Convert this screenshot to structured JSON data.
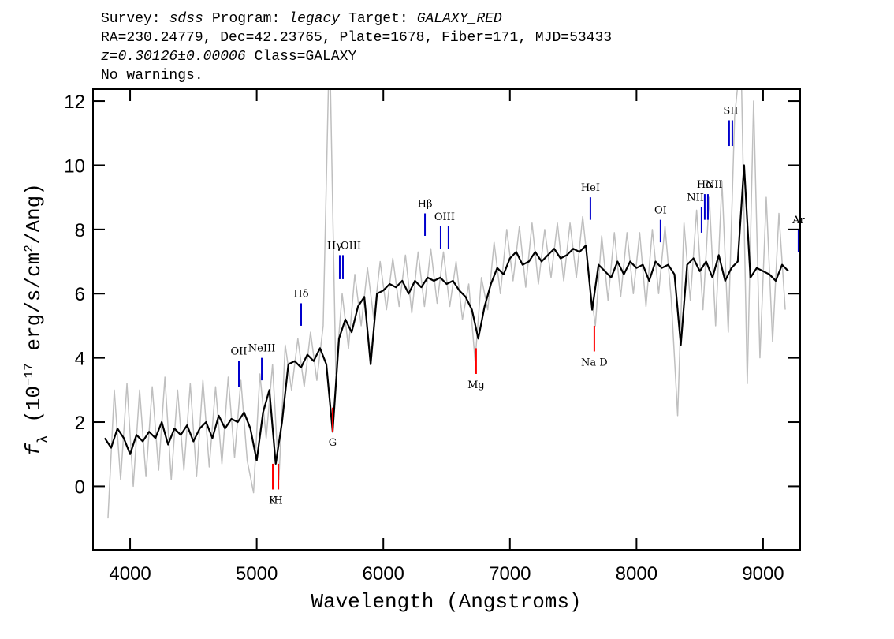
{
  "chart_data": {
    "type": "line",
    "title_lines": [
      [
        {
          "text": "Survey:"
        },
        {
          "text": "sdss",
          "italic": true
        },
        {
          "text": "Program:"
        },
        {
          "text": "legacy",
          "italic": true
        },
        {
          "text": "Target:"
        },
        {
          "text": "GALAXY_RED",
          "italic": true
        }
      ],
      [
        {
          "text": "RA=230.24779, Dec=42.23765, Plate=1678, Fiber=171, MJD=53433"
        }
      ],
      [
        {
          "text": "z=0.30126±0.00006",
          "italic": true
        },
        {
          "text": "Class=GALAXY"
        }
      ],
      [
        {
          "text": "No warnings."
        }
      ]
    ],
    "xlabel": "Wavelength (Angstroms)",
    "ylabel": [
      {
        "text": "f",
        "italic": true
      },
      {
        "text": "λ",
        "shift": "sub"
      },
      {
        "text": " (10"
      },
      {
        "text": "−17",
        "shift": "super"
      },
      {
        "text": " erg/s/cm"
      },
      {
        "text": "2",
        "shift": "super"
      },
      {
        "text": "/Ang)"
      }
    ],
    "xlim": [
      3707,
      9293
    ],
    "ylim": [
      -1.98,
      12.37
    ],
    "xticks": [
      4000,
      5000,
      6000,
      7000,
      8000,
      9000
    ],
    "yticks": [
      0,
      2,
      4,
      6,
      8,
      10,
      12
    ],
    "series": [
      {
        "color": "#bfbfbf",
        "x": [
          3825,
          3875,
          3925,
          3975,
          4025,
          4075,
          4125,
          4175,
          4225,
          4275,
          4325,
          4375,
          4425,
          4475,
          4525,
          4575,
          4625,
          4675,
          4725,
          4775,
          4825,
          4875,
          4925,
          4975,
          5025,
          5075,
          5125,
          5175,
          5225,
          5275,
          5325,
          5375,
          5425,
          5475,
          5525,
          5575,
          5625,
          5675,
          5725,
          5775,
          5825,
          5875,
          5925,
          5975,
          6025,
          6075,
          6125,
          6175,
          6225,
          6275,
          6325,
          6375,
          6425,
          6475,
          6525,
          6575,
          6625,
          6675,
          6725,
          6775,
          6825,
          6875,
          6925,
          6975,
          7025,
          7075,
          7125,
          7175,
          7225,
          7275,
          7325,
          7375,
          7425,
          7475,
          7525,
          7575,
          7625,
          7675,
          7725,
          7775,
          7825,
          7875,
          7925,
          7975,
          8025,
          8075,
          8125,
          8175,
          8225,
          8275,
          8325,
          8375,
          8425,
          8475,
          8525,
          8575,
          8625,
          8675,
          8725,
          8775,
          8825,
          8875,
          8925,
          8975,
          9025,
          9075,
          9125,
          9175
        ],
        "values": [
          -1.0,
          3.0,
          0.2,
          3.2,
          0.0,
          3.0,
          0.3,
          3.1,
          0.5,
          3.4,
          0.2,
          3.0,
          0.5,
          3.2,
          0.3,
          3.3,
          0.6,
          3.1,
          0.7,
          3.4,
          0.9,
          3.3,
          0.8,
          -0.2,
          3.5,
          1.5,
          3.8,
          0.2,
          4.4,
          3.0,
          4.6,
          3.1,
          4.8,
          3.3,
          5.0,
          14,
          3.5,
          6.0,
          4.3,
          6.6,
          5.0,
          6.8,
          5.2,
          7.0,
          5.5,
          7.1,
          5.6,
          7.2,
          5.4,
          7.3,
          5.6,
          7.4,
          5.7,
          7.3,
          5.6,
          7.0,
          5.2,
          6.3,
          3.9,
          6.5,
          5.5,
          7.6,
          6.0,
          8.0,
          6.4,
          8.1,
          6.2,
          8.2,
          6.3,
          8.0,
          6.5,
          8.2,
          6.4,
          8.2,
          6.5,
          8.4,
          6.5,
          5.0,
          7.8,
          5.8,
          7.9,
          5.9,
          7.9,
          6.0,
          7.9,
          5.6,
          8.0,
          6.0,
          8.1,
          5.8,
          2.2,
          8.2,
          5.8,
          8.6,
          5.5,
          9.0,
          5.0,
          9.5,
          4.8,
          11.5,
          13.5,
          3.2,
          12.0,
          4.0,
          9.0,
          4.5,
          8.5,
          5.5
        ]
      },
      {
        "color": "#000000",
        "x": [
          3800,
          3850,
          3900,
          3950,
          4000,
          4050,
          4100,
          4150,
          4200,
          4250,
          4300,
          4350,
          4400,
          4450,
          4500,
          4550,
          4600,
          4650,
          4700,
          4750,
          4800,
          4850,
          4900,
          4950,
          5000,
          5050,
          5100,
          5150,
          5200,
          5250,
          5300,
          5350,
          5400,
          5450,
          5500,
          5550,
          5600,
          5650,
          5700,
          5750,
          5800,
          5850,
          5900,
          5950,
          6000,
          6050,
          6100,
          6150,
          6200,
          6250,
          6300,
          6350,
          6400,
          6450,
          6500,
          6550,
          6600,
          6650,
          6700,
          6750,
          6800,
          6850,
          6900,
          6950,
          7000,
          7050,
          7100,
          7150,
          7200,
          7250,
          7300,
          7350,
          7400,
          7450,
          7500,
          7550,
          7600,
          7650,
          7700,
          7750,
          7800,
          7850,
          7900,
          7950,
          8000,
          8050,
          8100,
          8150,
          8200,
          8250,
          8300,
          8350,
          8400,
          8450,
          8500,
          8550,
          8600,
          8650,
          8700,
          8750,
          8800,
          8850,
          8900,
          8950,
          9000,
          9050,
          9100,
          9150,
          9200
        ],
        "values": [
          1.5,
          1.2,
          1.8,
          1.5,
          1.0,
          1.6,
          1.4,
          1.7,
          1.5,
          2.0,
          1.3,
          1.8,
          1.6,
          1.9,
          1.4,
          1.8,
          2.0,
          1.5,
          2.2,
          1.8,
          2.1,
          2.0,
          2.3,
          1.8,
          0.8,
          2.3,
          3.0,
          0.7,
          2.0,
          3.8,
          3.9,
          3.7,
          4.1,
          3.9,
          4.3,
          3.8,
          1.7,
          4.6,
          5.2,
          4.8,
          5.6,
          5.9,
          3.8,
          6.0,
          6.1,
          6.3,
          6.2,
          6.4,
          6.0,
          6.4,
          6.2,
          6.5,
          6.4,
          6.5,
          6.3,
          6.4,
          6.1,
          5.9,
          5.5,
          4.6,
          5.6,
          6.3,
          6.8,
          6.6,
          7.1,
          7.3,
          6.9,
          7.0,
          7.3,
          7.0,
          7.2,
          7.4,
          7.1,
          7.2,
          7.4,
          7.3,
          7.5,
          5.5,
          6.9,
          6.7,
          6.5,
          7.0,
          6.6,
          7.0,
          6.8,
          6.9,
          6.4,
          7.0,
          6.8,
          6.9,
          6.6,
          4.4,
          6.9,
          7.1,
          6.7,
          7.0,
          6.5,
          7.2,
          6.4,
          6.8,
          7.0,
          10.0,
          6.5,
          6.8,
          6.7,
          6.6,
          6.4,
          6.9,
          6.7
        ]
      }
    ],
    "emission_color": "#0000cc",
    "absorption_color": "#ff0000",
    "emission_lines": [
      {
        "label": "OII",
        "x": [
          4859
        ],
        "y": [
          3.1,
          3.9
        ]
      },
      {
        "label": "NeIII",
        "x": [
          5040
        ],
        "y": [
          3.3,
          4.0
        ]
      },
      {
        "label": "Hδ",
        "x": [
          5351
        ],
        "y": [
          5.0,
          5.7
        ]
      },
      {
        "label": "Hγ",
        "x": [
          5656
        ],
        "y": [
          6.45,
          7.2
        ],
        "anchor": "end"
      },
      {
        "label": "OIII",
        "x": [
          5681
        ],
        "y": [
          6.45,
          7.2
        ],
        "anchor": "start"
      },
      {
        "label": "Hβ",
        "x": [
          6329
        ],
        "y": [
          7.8,
          8.5
        ]
      },
      {
        "label": "OIII",
        "x": [
          6453,
          6515
        ],
        "y": [
          7.4,
          8.1
        ]
      },
      {
        "label": "HeI",
        "x": [
          7636
        ],
        "y": [
          8.3,
          9.0
        ]
      },
      {
        "label": "OI",
        "x": [
          8190
        ],
        "y": [
          7.6,
          8.3
        ]
      },
      {
        "label": "NII",
        "x": [
          8514
        ],
        "y": [
          7.9,
          8.7
        ],
        "anchor": "end"
      },
      {
        "label": "Hα",
        "x": [
          8539
        ],
        "y": [
          8.3,
          9.1
        ]
      },
      {
        "label": "NII",
        "x": [
          8564
        ],
        "y": [
          8.3,
          9.1
        ],
        "anchor": "start"
      },
      {
        "label": "SII",
        "x": [
          8732,
          8757
        ],
        "y": [
          10.6,
          11.4
        ]
      },
      {
        "label": "Ar",
        "x": [
          9280
        ],
        "y": [
          7.3,
          8.0
        ]
      }
    ],
    "absorption_lines": [
      {
        "label": "K",
        "x": [
          5127
        ],
        "y": [
          -0.1,
          0.7
        ]
      },
      {
        "label": "H",
        "x": [
          5171
        ],
        "y": [
          -0.1,
          0.7
        ]
      },
      {
        "label": "G",
        "x": [
          5600
        ],
        "y": [
          1.7,
          2.45
        ]
      },
      {
        "label": "Mg",
        "x": [
          6733
        ],
        "y": [
          3.5,
          4.3
        ]
      },
      {
        "label": "Na D",
        "x": [
          7667
        ],
        "y": [
          4.2,
          5.0
        ]
      }
    ]
  }
}
